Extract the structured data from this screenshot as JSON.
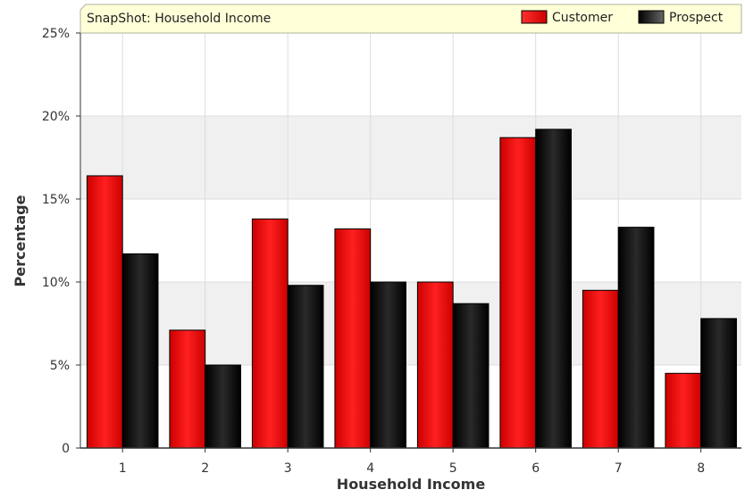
{
  "chart_data": {
    "type": "bar",
    "title": "SnapShot: Household Income",
    "xlabel": "Household Income",
    "ylabel": "Percentage",
    "categories": [
      "1",
      "2",
      "3",
      "4",
      "5",
      "6",
      "7",
      "8"
    ],
    "series": [
      {
        "name": "Customer",
        "color": "#ff0000",
        "values": [
          16.4,
          7.1,
          13.8,
          13.2,
          10.0,
          18.7,
          9.5,
          4.5
        ]
      },
      {
        "name": "Prospect",
        "color": "#000000",
        "values": [
          11.7,
          5.0,
          9.8,
          10.0,
          8.7,
          19.2,
          13.3,
          7.8
        ]
      }
    ],
    "ylim": [
      0,
      25
    ],
    "yticks": [
      0,
      5,
      10,
      15,
      20,
      25
    ],
    "ytick_labels": [
      "0",
      "5%",
      "10%",
      "15%",
      "20%",
      "25%"
    ],
    "grid": true,
    "legend_position": "top-right"
  }
}
